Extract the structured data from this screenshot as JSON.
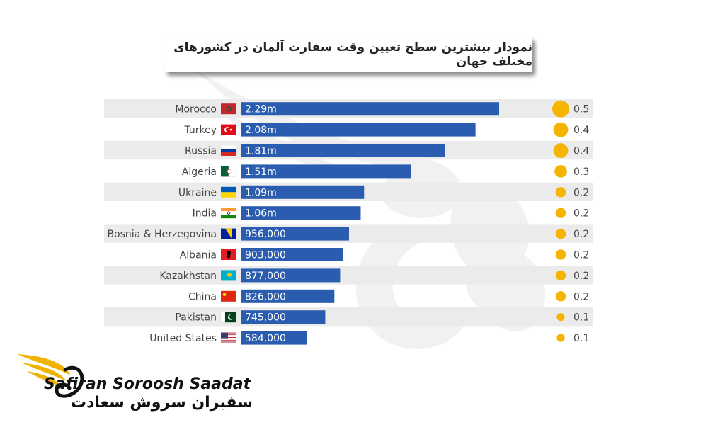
{
  "title": "نمودار بیشترین سطح تعیین وقت سفارت آلمان در کشورهای مختلف جهان",
  "chart_data": {
    "type": "bar",
    "orientation": "horizontal",
    "categories": [
      "Morocco",
      "Turkey",
      "Russia",
      "Algeria",
      "Ukraine",
      "India",
      "Bosnia & Herzegovina",
      "Albania",
      "Kazakhstan",
      "China",
      "Pakistan",
      "United States"
    ],
    "values": [
      2290000,
      2080000,
      1810000,
      1510000,
      1090000,
      1060000,
      956000,
      903000,
      877000,
      826000,
      745000,
      584000
    ],
    "value_labels": [
      "2.29m",
      "2.08m",
      "1.81m",
      "1.51m",
      "1.09m",
      "1.06m",
      "956,000",
      "903,000",
      "877,000",
      "826,000",
      "745,000",
      "584,000"
    ],
    "rates": [
      0.5,
      0.4,
      0.4,
      0.3,
      0.2,
      0.2,
      0.2,
      0.2,
      0.2,
      0.2,
      0.1,
      0.1
    ],
    "rate_labels": [
      "0.5",
      "0.4",
      "0.4",
      "0.3",
      "0.2",
      "0.2",
      "0.2",
      "0.2",
      "0.2",
      "0.2",
      "0.1",
      "0.1"
    ],
    "flags": [
      "morocco-flag",
      "turkey-flag",
      "russia-flag",
      "algeria-flag",
      "ukraine-flag",
      "india-flag",
      "bosnia-flag",
      "albania-flag",
      "kazakhstan-flag",
      "china-flag",
      "pakistan-flag",
      "united-states-flag"
    ],
    "colors": {
      "bar": "#2a5db0",
      "dot": "#f5b400",
      "stripe": "#ebebeb"
    },
    "grid": false,
    "legend": "none"
  },
  "logo": {
    "english": "Safiran Soroosh Saadat",
    "persian": "سفیران سروش سعادت"
  }
}
